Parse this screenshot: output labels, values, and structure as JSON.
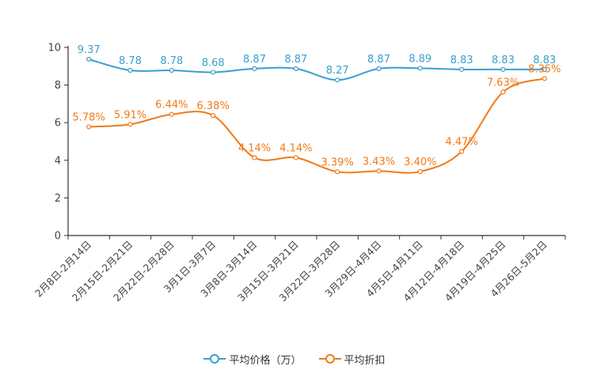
{
  "chart_data": {
    "type": "line",
    "title": "",
    "xlabel": "",
    "ylabel": "",
    "ylim": [
      0,
      10
    ],
    "yticks": [
      "0",
      "2",
      "4",
      "6",
      "8",
      "10"
    ],
    "categories": [
      "2月8日-2月14日",
      "2月15日-2月21日",
      "2月22日-2月28日",
      "3月1日-3月7日",
      "3月8日-3月14日",
      "3月15日-3月21日",
      "3月22日-3月28日",
      "3月29日-4月4日",
      "4月5日-4月11日",
      "4月12日-4月18日",
      "4月19日-4月25日",
      "4月26日-5月2日"
    ],
    "series": [
      {
        "name": "平均价格（万）",
        "color": "#3a9fce",
        "values": [
          9.37,
          8.78,
          8.78,
          8.68,
          8.87,
          8.87,
          8.27,
          8.87,
          8.89,
          8.83,
          8.83,
          8.83
        ],
        "labels": [
          "9.37",
          "8.78",
          "8.78",
          "8.68",
          "8.87",
          "8.87",
          "8.27",
          "8.87",
          "8.89",
          "8.83",
          "8.83",
          "8.83"
        ]
      },
      {
        "name": "平均折扣",
        "color": "#f07a16",
        "values": [
          5.78,
          5.91,
          6.44,
          6.38,
          4.14,
          4.14,
          3.39,
          3.43,
          3.4,
          4.47,
          7.63,
          8.35
        ],
        "labels": [
          "5.78%",
          "5.91%",
          "6.44%",
          "6.38%",
          "4.14%",
          "4.14%",
          "3.39%",
          "3.43%",
          "3.40%",
          "4.47%",
          "7.63%",
          "8.35%"
        ]
      }
    ],
    "legend_position": "bottom-center",
    "grid": false
  }
}
